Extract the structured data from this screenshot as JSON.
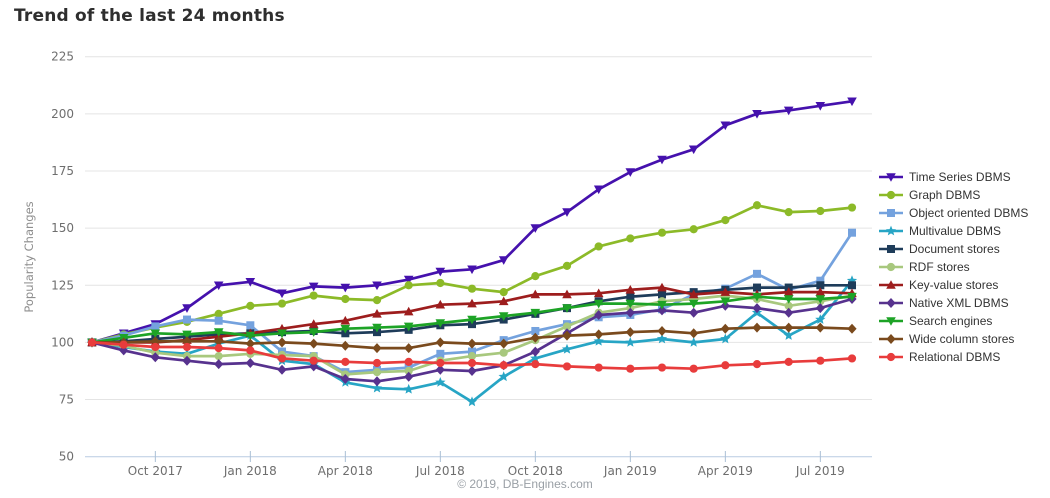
{
  "page": {
    "title": "Trend of the last 24 months",
    "credits": "© 2019, DB-Engines.com"
  },
  "chart_data": {
    "type": "line",
    "title": "Trend of the last 24 months",
    "xlabel": "",
    "ylabel": "Popularity Changes",
    "ylim": [
      50,
      225
    ],
    "yticks": [
      50,
      75,
      100,
      125,
      150,
      175,
      200,
      225
    ],
    "grid": "horizontal",
    "legend_position": "right",
    "x": [
      "Aug 2017",
      "Sep 2017",
      "Oct 2017",
      "Nov 2017",
      "Dec 2017",
      "Jan 2018",
      "Feb 2018",
      "Mar 2018",
      "Apr 2018",
      "May 2018",
      "Jun 2018",
      "Jul 2018",
      "Aug 2018",
      "Sep 2018",
      "Oct 2018",
      "Nov 2018",
      "Dec 2018",
      "Jan 2019",
      "Feb 2019",
      "Mar 2019",
      "Apr 2019",
      "May 2019",
      "Jun 2019",
      "Jul 2019",
      "Aug 2019"
    ],
    "x_tick_labels": [
      "Oct 2017",
      "Jan 2018",
      "Apr 2018",
      "Jul 2018",
      "Oct 2018",
      "Jan 2019",
      "Apr 2019",
      "Jul 2019"
    ],
    "x_tick_indices": [
      2,
      5,
      8,
      11,
      14,
      17,
      20,
      23
    ],
    "series": [
      {
        "name": "Time Series DBMS",
        "color": "#4511ad",
        "marker": "triangle-down",
        "values": [
          100,
          104,
          108,
          115,
          125,
          126.5,
          121.5,
          124.5,
          124,
          125,
          127.5,
          131,
          132,
          136,
          150,
          157,
          167,
          174.5,
          180,
          184.5,
          195,
          200,
          201.5,
          203.5,
          205.5
        ]
      },
      {
        "name": "Graph DBMS",
        "color": "#8cba28",
        "marker": "circle",
        "values": [
          100,
          103.5,
          106.5,
          109,
          112.5,
          116,
          117,
          120.5,
          119,
          118.5,
          125,
          126,
          123.5,
          122,
          129,
          133.5,
          142,
          145.5,
          148,
          149.5,
          153.5,
          160,
          157,
          157.5,
          159
        ]
      },
      {
        "name": "Object oriented DBMS",
        "color": "#74a2de",
        "marker": "square",
        "values": [
          100,
          103,
          107,
          110,
          109.5,
          107.5,
          96,
          94,
          87,
          88,
          89,
          95,
          96,
          101,
          105,
          108,
          111,
          112,
          114.5,
          121,
          123.5,
          130,
          123,
          127,
          148
        ]
      },
      {
        "name": "Multivalue DBMS",
        "color": "#27a5c5",
        "marker": "star",
        "values": [
          100,
          98,
          96,
          95,
          99.5,
          103,
          92,
          90.5,
          82.5,
          80,
          79.5,
          82.5,
          74,
          85,
          93,
          97,
          100.5,
          100,
          101.5,
          100,
          101.5,
          113,
          103,
          110,
          127
        ]
      },
      {
        "name": "Document stores",
        "color": "#1e3c5a",
        "marker": "square",
        "values": [
          100,
          100.5,
          101.5,
          102.5,
          103.5,
          104,
          104.5,
          105,
          104,
          104.5,
          105.5,
          107.5,
          108,
          110,
          112.5,
          115,
          118,
          120,
          121,
          122,
          123,
          124,
          124,
          125,
          125
        ]
      },
      {
        "name": "RDF stores",
        "color": "#a8c87e",
        "marker": "circle",
        "values": [
          100,
          98.5,
          95.5,
          94,
          94,
          95,
          94.5,
          94,
          86,
          87,
          87.5,
          92,
          94,
          95.5,
          101,
          107,
          113,
          115,
          118,
          119,
          120.5,
          119,
          116,
          118,
          120.5
        ]
      },
      {
        "name": "Key-value stores",
        "color": "#9d1d1d",
        "marker": "triangle-up",
        "values": [
          100,
          100,
          100,
          101,
          102.5,
          104,
          106,
          108,
          109.5,
          112.5,
          113.5,
          116.5,
          117,
          118,
          121,
          121,
          121.5,
          123,
          124,
          121,
          122,
          121,
          122,
          122,
          121.5
        ]
      },
      {
        "name": "Native XML DBMS",
        "color": "#57328e",
        "marker": "diamond",
        "values": [
          100,
          96.5,
          93.5,
          92,
          90.5,
          91,
          88,
          89.5,
          84,
          83,
          85,
          88,
          87.5,
          90,
          96,
          104,
          112,
          113,
          114,
          113,
          116,
          115,
          113,
          115,
          119
        ]
      },
      {
        "name": "Search engines",
        "color": "#1da326",
        "marker": "triangle-down",
        "values": [
          100,
          102,
          104,
          103.5,
          104.5,
          103,
          104,
          104.5,
          106,
          106.5,
          107,
          108.5,
          110,
          111.5,
          113,
          115,
          117,
          117,
          116.5,
          117,
          118,
          120,
          119,
          119,
          120
        ]
      },
      {
        "name": "Wide column stores",
        "color": "#7a4a1d",
        "marker": "diamond",
        "values": [
          100,
          100,
          100.5,
          100.5,
          100.5,
          99.5,
          100,
          99.5,
          98.5,
          97.5,
          97.5,
          100,
          99.5,
          99.5,
          102,
          103,
          103.5,
          104.5,
          105,
          104,
          106,
          106.5,
          106.5,
          106.5,
          106
        ]
      },
      {
        "name": "Relational DBMS",
        "color": "#e83c3c",
        "marker": "circle",
        "values": [
          100,
          99,
          98,
          98,
          97.5,
          96.5,
          93,
          92,
          91.5,
          91,
          91.5,
          91,
          91,
          90,
          90.5,
          89.5,
          89,
          88.5,
          89,
          88.5,
          90,
          90.5,
          91.5,
          92,
          93
        ]
      }
    ]
  }
}
